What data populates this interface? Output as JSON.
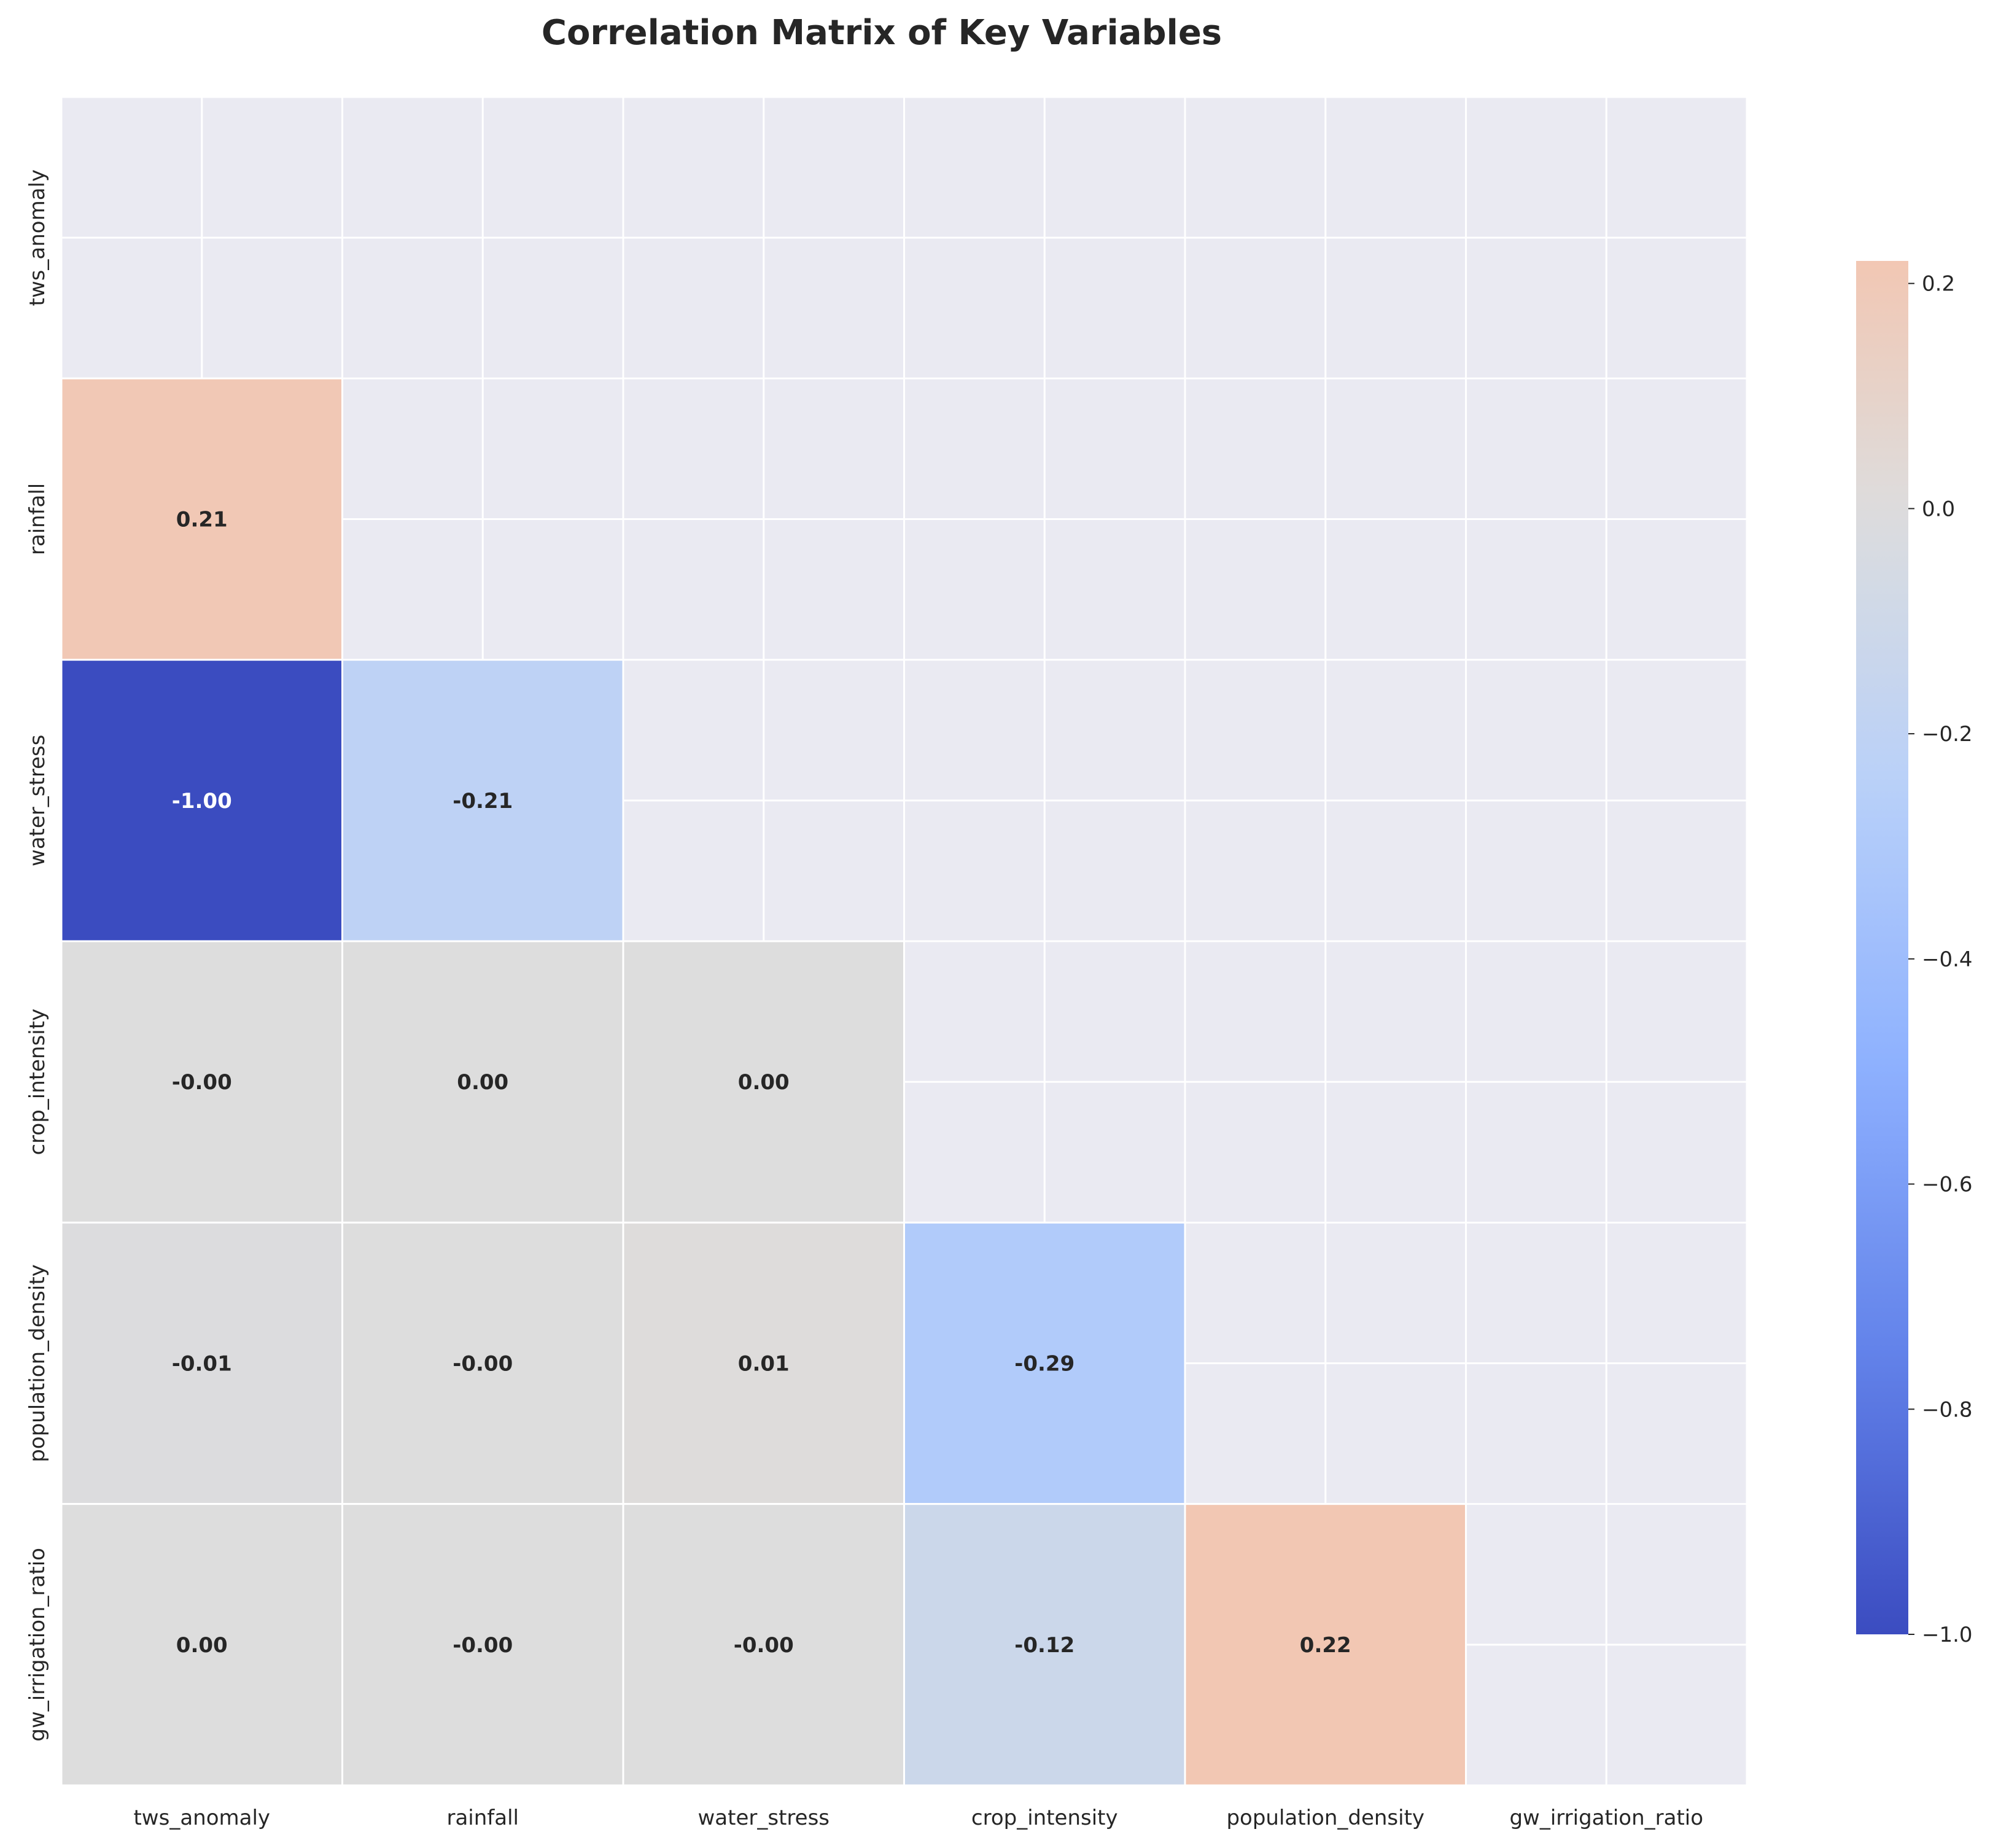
{
  "chart_data": {
    "type": "heatmap",
    "title": "Correlation Matrix of Key Variables",
    "variables": [
      "tws_anomaly",
      "rainfall",
      "water_stress",
      "crop_intensity",
      "population_density",
      "gw_irrigation_ratio"
    ],
    "mask": "upper-triangle-including-diagonal",
    "cells": [
      {
        "row": "rainfall",
        "col": "tws_anomaly",
        "value": 0.21,
        "label": "0.21"
      },
      {
        "row": "water_stress",
        "col": "tws_anomaly",
        "value": -1.0,
        "label": "-1.00"
      },
      {
        "row": "water_stress",
        "col": "rainfall",
        "value": -0.21,
        "label": "-0.21"
      },
      {
        "row": "crop_intensity",
        "col": "tws_anomaly",
        "value": -0.0,
        "label": "-0.00"
      },
      {
        "row": "crop_intensity",
        "col": "rainfall",
        "value": 0.0,
        "label": "0.00"
      },
      {
        "row": "crop_intensity",
        "col": "water_stress",
        "value": 0.0,
        "label": "0.00"
      },
      {
        "row": "population_density",
        "col": "tws_anomaly",
        "value": -0.01,
        "label": "-0.01"
      },
      {
        "row": "population_density",
        "col": "rainfall",
        "value": -0.0,
        "label": "-0.00"
      },
      {
        "row": "population_density",
        "col": "water_stress",
        "value": 0.01,
        "label": "0.01"
      },
      {
        "row": "population_density",
        "col": "crop_intensity",
        "value": -0.29,
        "label": "-0.29"
      },
      {
        "row": "gw_irrigation_ratio",
        "col": "tws_anomaly",
        "value": 0.0,
        "label": "0.00"
      },
      {
        "row": "gw_irrigation_ratio",
        "col": "rainfall",
        "value": -0.0,
        "label": "-0.00"
      },
      {
        "row": "gw_irrigation_ratio",
        "col": "water_stress",
        "value": -0.0,
        "label": "-0.00"
      },
      {
        "row": "gw_irrigation_ratio",
        "col": "crop_intensity",
        "value": -0.12,
        "label": "-0.12"
      },
      {
        "row": "gw_irrigation_ratio",
        "col": "population_density",
        "value": 0.22,
        "label": "0.22"
      }
    ],
    "colorbar": {
      "colormap": "coolwarm",
      "range": [
        -1.0,
        0.22
      ],
      "ticks": [
        0.2,
        0.0,
        -0.2,
        -0.4,
        -0.6,
        -0.8,
        -1.0
      ],
      "tick_labels": [
        "0.2",
        "0.0",
        "−0.2",
        "−0.4",
        "−0.6",
        "−0.8",
        "−1.0"
      ]
    },
    "colors": {
      "background": "#eaeaf2",
      "grid": "#ffffff",
      "text": "#262626"
    },
    "grid": true
  }
}
